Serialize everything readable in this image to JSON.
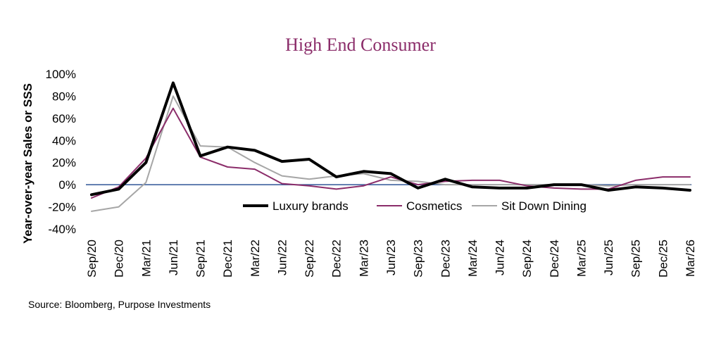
{
  "chart_data": {
    "type": "line",
    "title": "High End Consumer",
    "ylabel": "Year-over-year Sales or SSS",
    "xlabel": "",
    "source": "Source: Bloomberg, Purpose Investments",
    "ylim": [
      -40,
      100
    ],
    "yticks": [
      "100%",
      "80%",
      "60%",
      "40%",
      "20%",
      "0%",
      "-20%",
      "-40%"
    ],
    "ytick_values": [
      100,
      80,
      60,
      40,
      20,
      0,
      -20,
      -40
    ],
    "categories": [
      "Sep/20",
      "Dec/20",
      "Mar/21",
      "Jun/21",
      "Sep/21",
      "Dec/21",
      "Mar/22",
      "Jun/22",
      "Sep/22",
      "Dec/22",
      "Mar/23",
      "Jun/23",
      "Sep/23",
      "Dec/23",
      "Mar/24",
      "Jun/24",
      "Sep/24",
      "Dec/24",
      "Mar/25",
      "Jun/25",
      "Sep/25",
      "Dec/25",
      "Mar/26"
    ],
    "legend_position": "center",
    "series": [
      {
        "name": "Luxury brands",
        "color": "#000000",
        "values": [
          -9,
          -4,
          20,
          92,
          26,
          34,
          31,
          21,
          23,
          7,
          12,
          10,
          -3,
          5,
          -2,
          -3,
          -3,
          0,
          0,
          -5,
          -2,
          -3,
          -5
        ]
      },
      {
        "name": "Cosmetics",
        "color": "#8b2d6a",
        "values": [
          -12,
          -2,
          24,
          69,
          25,
          16,
          14,
          1,
          -1,
          -4,
          -1,
          7,
          0,
          3,
          4,
          4,
          -1,
          -3,
          -4,
          -4,
          4,
          7,
          7
        ]
      },
      {
        "name": "Sit Down Dining",
        "color": "#a6a6a6",
        "values": [
          -24,
          -20,
          2,
          80,
          35,
          34,
          20,
          8,
          5,
          8,
          10,
          4,
          3,
          0,
          0,
          0,
          0,
          0,
          0,
          -1,
          0,
          0,
          0
        ]
      }
    ]
  }
}
